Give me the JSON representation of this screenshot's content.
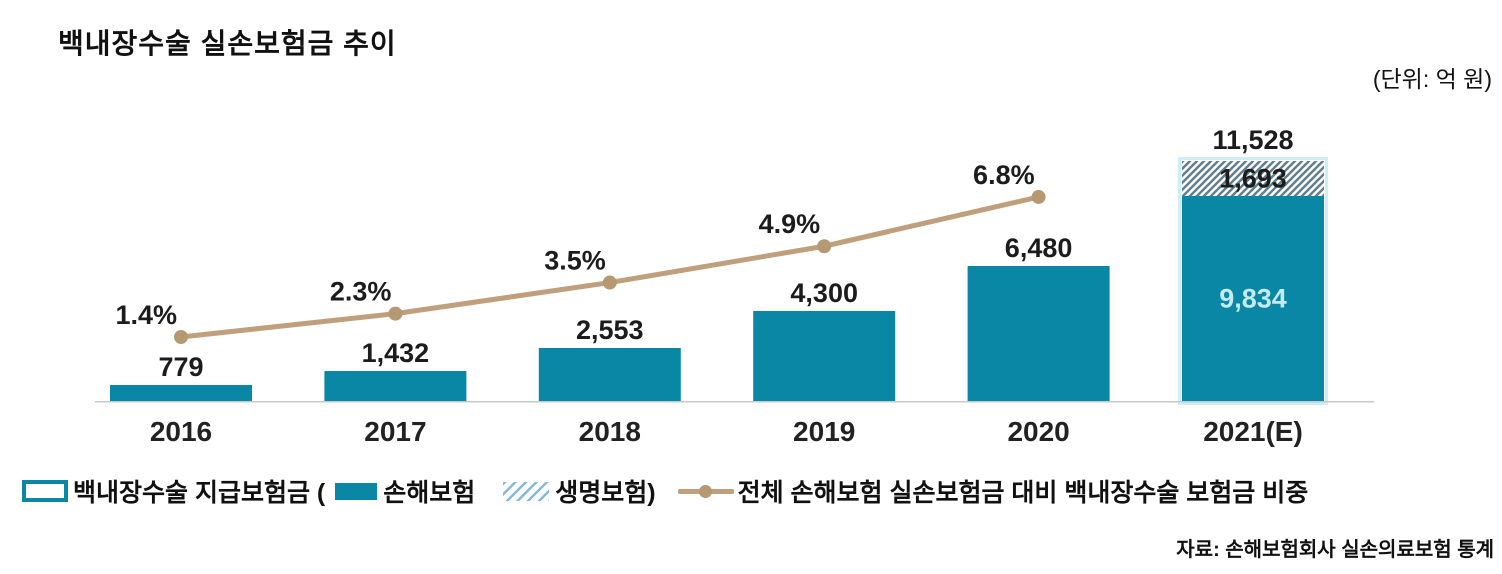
{
  "header": {
    "title": "백내장수술 실손보험금 추이",
    "unit": "(단위: 억 원)"
  },
  "legend": {
    "outline_label": "백내장수술 지급보험금 (",
    "fill_label": "손해보험",
    "hatch_label": "생명보험)",
    "line_label": "전체 손해보험 실손보험금 대비 백내장수술 보험금 비중"
  },
  "footer": {
    "source": "자료: 손해보험회사 실손의료보험 통계"
  },
  "colors": {
    "bar_fill": "#0b87a6",
    "bar_outline_light": "#cdeef5",
    "hatch_stripe": "#5f7e8e",
    "legend_hatch_stripe": "#85bad8",
    "line": "#bf9f7c",
    "marker": "#b69873",
    "axis": "#c9c9c9",
    "label_dark": "#1c1c1c",
    "bar_inner_label": "#c3ebf1"
  },
  "chart_data": {
    "type": "bar",
    "subtype": "stacked-bar-with-percent-line",
    "title": "백내장수술 실손보험금 추이",
    "unit": "억 원",
    "categories": [
      "2016",
      "2017",
      "2018",
      "2019",
      "2020",
      "2021(E)"
    ],
    "series": [
      {
        "name": "손해보험",
        "type": "bar",
        "values": [
          779,
          1432,
          2553,
          4300,
          6480,
          9834
        ]
      },
      {
        "name": "생명보험",
        "type": "bar",
        "style": "hatched",
        "values": [
          null,
          null,
          null,
          null,
          null,
          1693
        ]
      },
      {
        "name": "전체 손해보험 실손보험금 대비 백내장수술 보험금 비중",
        "type": "line",
        "values": [
          1.4,
          2.3,
          3.5,
          4.9,
          6.8,
          null
        ]
      }
    ],
    "stack_total_labels": [
      null,
      null,
      null,
      null,
      null,
      "11,528"
    ],
    "percent_suffix": "%",
    "ylim": [
      0,
      12000
    ],
    "grid": false,
    "legend_position": "bottom"
  }
}
